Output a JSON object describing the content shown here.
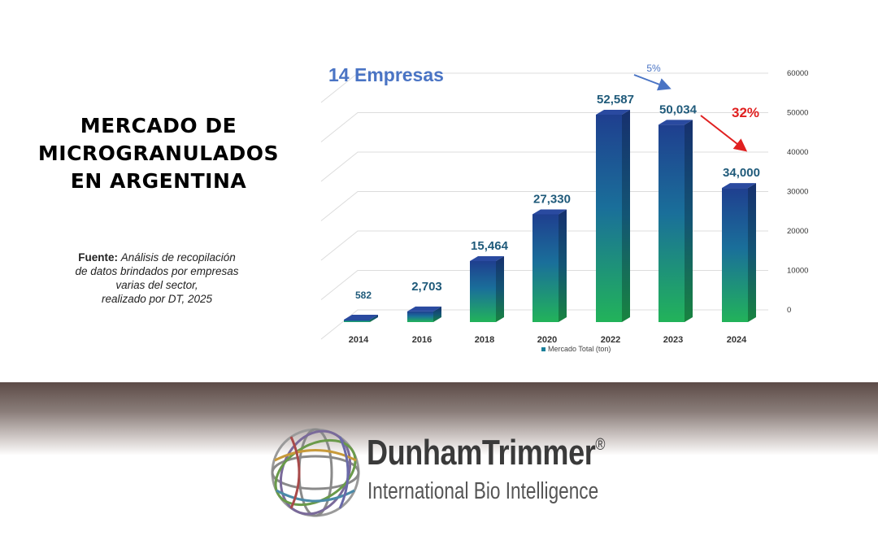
{
  "title_lines": [
    "MERCADO DE",
    "MICROGRANULADOS",
    "EN ARGENTINA"
  ],
  "source": {
    "label": "Fuente:",
    "lines": [
      "Análisis de recopilación",
      "de datos brindados por empresas",
      "varias del sector,",
      "realizado por DT, 2025"
    ]
  },
  "chart_data": {
    "type": "bar",
    "title": "14 Empresas",
    "categories": [
      "2014",
      "2016",
      "2018",
      "2020",
      "2022",
      "2023",
      "2024"
    ],
    "series": [
      {
        "name": "Mercado Total (ton)",
        "values": [
          582,
          2703,
          15464,
          27330,
          52587,
          50034,
          34000
        ]
      }
    ],
    "data_labels": [
      "582",
      "2,703",
      "15,464",
      "27,330",
      "52,587",
      "50,034",
      "34,000"
    ],
    "y_ticks": [
      "60000",
      "50000",
      "40000",
      "30000",
      "20000",
      "10000",
      "0"
    ],
    "ylim": [
      0,
      60000
    ],
    "y_axis_position": "right",
    "grid": true,
    "legend_position": "bottom",
    "annotations": [
      {
        "text": "5%",
        "color": "#4a74c4"
      },
      {
        "text": "32%",
        "color": "#e02020"
      }
    ],
    "colors": {
      "bar_top": "#1f3f8f",
      "bar_bottom": "#22b35a",
      "title": "#4a74c4",
      "labels": "#1f5a7a"
    }
  },
  "brand": {
    "name": "DunhamTrimmer",
    "registered": "®",
    "tagline": "International Bio Intelligence"
  }
}
